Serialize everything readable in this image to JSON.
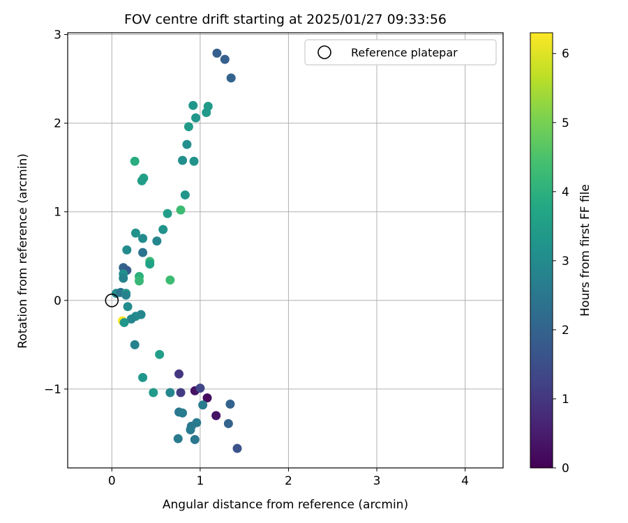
{
  "chart_data": {
    "type": "scatter",
    "title": "FOV centre drift starting at 2025/01/27 09:33:56",
    "xlabel": "Angular distance from reference (arcmin)",
    "ylabel": "Rotation from reference (arcmin)",
    "xlim": [
      -0.5,
      4.43
    ],
    "ylim": [
      -1.89,
      3.02
    ],
    "xticks": [
      0,
      1,
      2,
      3,
      4
    ],
    "xtick_labels": [
      "0",
      "1",
      "2",
      "3",
      "4"
    ],
    "yticks": [
      -1,
      0,
      1,
      2,
      3
    ],
    "ytick_labels": [
      "−1",
      "0",
      "1",
      "2",
      "3"
    ],
    "grid": true,
    "legend": {
      "placement": "top-right",
      "entries": [
        "Reference platepar"
      ]
    },
    "reference_point": {
      "x": 0.0,
      "y": 0.0
    },
    "colorbar": {
      "label": "Hours from first FF file",
      "colormap": "viridis",
      "range": [
        0,
        6.3
      ],
      "ticks": [
        0,
        1,
        2,
        3,
        4,
        5,
        6
      ],
      "tick_labels": [
        "0",
        "1",
        "2",
        "3",
        "4",
        "5",
        "6"
      ]
    },
    "points": [
      {
        "x": 0.12,
        "y": -0.23,
        "hours": 6.3
      },
      {
        "x": 1.19,
        "y": 2.79,
        "hours": 1.9
      },
      {
        "x": 1.28,
        "y": 2.72,
        "hours": 1.9
      },
      {
        "x": 1.35,
        "y": 2.51,
        "hours": 2.0
      },
      {
        "x": 0.92,
        "y": 2.2,
        "hours": 3.3
      },
      {
        "x": 1.09,
        "y": 2.19,
        "hours": 3.4
      },
      {
        "x": 1.07,
        "y": 2.12,
        "hours": 3.4
      },
      {
        "x": 0.95,
        "y": 2.06,
        "hours": 3.3
      },
      {
        "x": 0.87,
        "y": 1.96,
        "hours": 3.4
      },
      {
        "x": 0.85,
        "y": 1.76,
        "hours": 3.1
      },
      {
        "x": 0.26,
        "y": 1.57,
        "hours": 3.9
      },
      {
        "x": 0.8,
        "y": 1.58,
        "hours": 3.1
      },
      {
        "x": 0.93,
        "y": 1.57,
        "hours": 3.2
      },
      {
        "x": 0.36,
        "y": 1.38,
        "hours": 3.6
      },
      {
        "x": 0.34,
        "y": 1.35,
        "hours": 3.5
      },
      {
        "x": 0.83,
        "y": 1.19,
        "hours": 3.3
      },
      {
        "x": 0.78,
        "y": 1.02,
        "hours": 4.3
      },
      {
        "x": 0.63,
        "y": 0.98,
        "hours": 3.5
      },
      {
        "x": 0.58,
        "y": 0.8,
        "hours": 3.2
      },
      {
        "x": 0.27,
        "y": 0.76,
        "hours": 3.2
      },
      {
        "x": 0.35,
        "y": 0.7,
        "hours": 3.0
      },
      {
        "x": 0.51,
        "y": 0.67,
        "hours": 2.9
      },
      {
        "x": 0.17,
        "y": 0.57,
        "hours": 3.0
      },
      {
        "x": 0.35,
        "y": 0.54,
        "hours": 2.4
      },
      {
        "x": 0.43,
        "y": 0.44,
        "hours": 4.2
      },
      {
        "x": 0.43,
        "y": 0.41,
        "hours": 3.6
      },
      {
        "x": 0.13,
        "y": 0.37,
        "hours": 2.0
      },
      {
        "x": 0.17,
        "y": 0.34,
        "hours": 1.8
      },
      {
        "x": 0.13,
        "y": 0.3,
        "hours": 3.1
      },
      {
        "x": 0.31,
        "y": 0.27,
        "hours": 4.0
      },
      {
        "x": 0.13,
        "y": 0.25,
        "hours": 2.8
      },
      {
        "x": 0.31,
        "y": 0.22,
        "hours": 4.2
      },
      {
        "x": 0.66,
        "y": 0.23,
        "hours": 4.3
      },
      {
        "x": 0.05,
        "y": 0.08,
        "hours": 3.0
      },
      {
        "x": 0.1,
        "y": 0.09,
        "hours": 2.4
      },
      {
        "x": 0.16,
        "y": 0.08,
        "hours": 3.4
      },
      {
        "x": 0.16,
        "y": 0.06,
        "hours": 2.8
      },
      {
        "x": 0.18,
        "y": -0.07,
        "hours": 3.0
      },
      {
        "x": 0.27,
        "y": -0.18,
        "hours": 3.0
      },
      {
        "x": 0.33,
        "y": -0.16,
        "hours": 2.9
      },
      {
        "x": 0.22,
        "y": -0.21,
        "hours": 2.9
      },
      {
        "x": 0.14,
        "y": -0.25,
        "hours": 3.3
      },
      {
        "x": 0.26,
        "y": -0.5,
        "hours": 2.8
      },
      {
        "x": 0.54,
        "y": -0.61,
        "hours": 3.5
      },
      {
        "x": 0.35,
        "y": -0.87,
        "hours": 3.3
      },
      {
        "x": 0.76,
        "y": -0.83,
        "hours": 1.0
      },
      {
        "x": 0.47,
        "y": -1.04,
        "hours": 3.4
      },
      {
        "x": 0.66,
        "y": -1.04,
        "hours": 2.9
      },
      {
        "x": 0.78,
        "y": -1.04,
        "hours": 1.1
      },
      {
        "x": 0.94,
        "y": -1.02,
        "hours": 0.3
      },
      {
        "x": 1.0,
        "y": -0.99,
        "hours": 1.3
      },
      {
        "x": 1.08,
        "y": -1.1,
        "hours": 0.2
      },
      {
        "x": 1.03,
        "y": -1.18,
        "hours": 2.6
      },
      {
        "x": 1.34,
        "y": -1.17,
        "hours": 2.0
      },
      {
        "x": 0.76,
        "y": -1.26,
        "hours": 2.5
      },
      {
        "x": 0.8,
        "y": -1.27,
        "hours": 2.6
      },
      {
        "x": 1.18,
        "y": -1.3,
        "hours": 0.3
      },
      {
        "x": 0.96,
        "y": -1.38,
        "hours": 2.6
      },
      {
        "x": 1.32,
        "y": -1.39,
        "hours": 2.0
      },
      {
        "x": 0.9,
        "y": -1.42,
        "hours": 2.5
      },
      {
        "x": 0.89,
        "y": -1.46,
        "hours": 2.6
      },
      {
        "x": 0.75,
        "y": -1.56,
        "hours": 2.6
      },
      {
        "x": 0.94,
        "y": -1.57,
        "hours": 2.5
      },
      {
        "x": 1.42,
        "y": -1.67,
        "hours": 1.6
      }
    ]
  }
}
